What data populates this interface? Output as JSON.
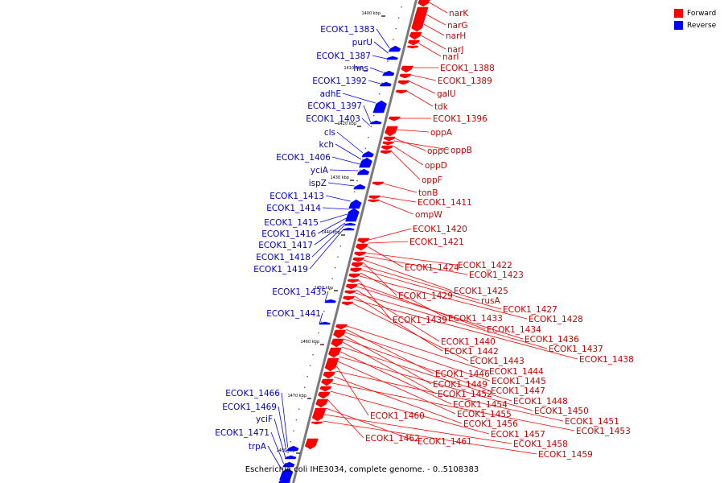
{
  "legend": {
    "forward": {
      "label": "Forward",
      "color": "#ff0000"
    },
    "reverse": {
      "label": "Reverse",
      "color": "#0000ff"
    }
  },
  "caption": "Escherichia coli IHE3034, complete genome. - 0..5108383",
  "ticks": [
    "1400 kbp",
    "1410 kbp",
    "1420 kbp",
    "1430 kbp",
    "1440 kbp",
    "1450 kbp",
    "1460 kbp",
    "1470 kbp",
    "1480 kbp"
  ],
  "forward_genes": [
    "narK",
    "narG",
    "narH",
    "narJ",
    "narI",
    "ECOK1_1388",
    "ECOK1_1389",
    "galU",
    "tdk",
    "ECOK1_1396",
    "oppA",
    "oppC",
    "oppB",
    "oppD",
    "oppF",
    "tonB",
    "ECOK1_1411",
    "ompW",
    "ECOK1_1420",
    "ECOK1_1421",
    "ECOK1_1424",
    "ECOK1_1422",
    "ECOK1_1423",
    "ECOK1_1425",
    "ECOK1_1429",
    "rusA",
    "ECOK1_1427",
    "ECOK1_1433",
    "ECOK1_1428",
    "ECOK1_1439",
    "ECOK1_1434",
    "ECOK1_1436",
    "ECOK1_1440",
    "ECOK1_1437",
    "ECOK1_1442",
    "ECOK1_1438",
    "ECOK1_1443",
    "ECOK1_1444",
    "ECOK1_1446",
    "ECOK1_1445",
    "ECOK1_1449",
    "ECOK1_1447",
    "ECOK1_1452",
    "ECOK1_1448",
    "ECOK1_1454",
    "ECOK1_1450",
    "ECOK1_1455",
    "ECOK1_1460",
    "ECOK1_1451",
    "ECOK1_1456",
    "ECOK1_1453",
    "ECOK1_1457",
    "ECOK1_1462",
    "ECOK1_1461",
    "ECOK1_1458",
    "ECOK1_1459"
  ],
  "reverse_genes": [
    "ECOK1_1383",
    "purU",
    "ECOK1_1387",
    "hns",
    "ECOK1_1392",
    "adhE",
    "ECOK1_1397",
    "ECOK1_1403",
    "cls",
    "kch",
    "ECOK1_1406",
    "yciA",
    "ispZ",
    "ECOK1_1413",
    "ECOK1_1414",
    "ECOK1_1415",
    "ECOK1_1416",
    "ECOK1_1417",
    "ECOK1_1418",
    "ECOK1_1419",
    "ECOK1_1435",
    "ECOK1_1441",
    "ECOK1_1466",
    "ECOK1_1469",
    "yciF",
    "ECOK1_1471",
    "trpA"
  ]
}
